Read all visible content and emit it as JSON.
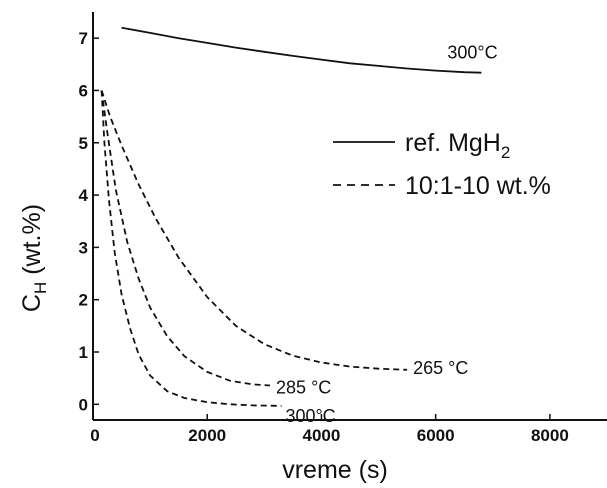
{
  "chart_data": {
    "type": "line",
    "xlabel": "vreme (s)",
    "ylabel_main": "C",
    "ylabel_sub": "H",
    "ylabel_suffix": " (wt.%)",
    "xlim": [
      0,
      9000
    ],
    "ylim": [
      -0.3,
      7.5
    ],
    "xticks": [
      0,
      2000,
      4000,
      6000,
      8000
    ],
    "yticks": [
      0,
      1,
      2,
      3,
      4,
      5,
      6,
      7
    ],
    "legend": {
      "placement": "right",
      "entries": [
        {
          "label_main": "ref. MgH",
          "label_sub": "2",
          "style": "solid"
        },
        {
          "label_main": "10:1-10 wt.%",
          "label_sub": "",
          "style": "dashed"
        }
      ]
    },
    "series": [
      {
        "name": "ref. MgH2",
        "style": "solid",
        "label": "300°C",
        "x": [
          500,
          1000,
          1500,
          2000,
          2500,
          3000,
          3500,
          4000,
          4500,
          5000,
          5500,
          6000,
          6500,
          6800
        ],
        "y": [
          7.2,
          7.1,
          7.0,
          6.91,
          6.82,
          6.74,
          6.66,
          6.59,
          6.52,
          6.47,
          6.42,
          6.38,
          6.35,
          6.34
        ]
      },
      {
        "name": "265 °C",
        "style": "dashed",
        "label": "265 °C",
        "x": [
          150,
          300,
          500,
          800,
          1100,
          1500,
          2000,
          2500,
          3000,
          3500,
          4000,
          4500,
          5000,
          5500
        ],
        "y": [
          6.0,
          5.5,
          4.95,
          4.2,
          3.55,
          2.8,
          2.05,
          1.5,
          1.15,
          0.93,
          0.8,
          0.72,
          0.68,
          0.66
        ]
      },
      {
        "name": "285 °C",
        "style": "dashed",
        "label": "285 °C",
        "x": [
          150,
          250,
          400,
          600,
          800,
          1000,
          1300,
          1600,
          2000,
          2400,
          2800,
          3100
        ],
        "y": [
          6.0,
          5.2,
          4.1,
          3.1,
          2.4,
          1.85,
          1.3,
          0.92,
          0.62,
          0.45,
          0.38,
          0.36
        ]
      },
      {
        "name": "300°C",
        "style": "dashed",
        "label": "300°C",
        "x": [
          150,
          200,
          280,
          380,
          500,
          650,
          800,
          1000,
          1300,
          1600,
          2000,
          2400,
          2800,
          3300
        ],
        "y": [
          6.0,
          5.0,
          3.9,
          2.9,
          2.1,
          1.45,
          0.95,
          0.55,
          0.25,
          0.12,
          0.04,
          0.0,
          -0.02,
          -0.03
        ]
      }
    ]
  }
}
